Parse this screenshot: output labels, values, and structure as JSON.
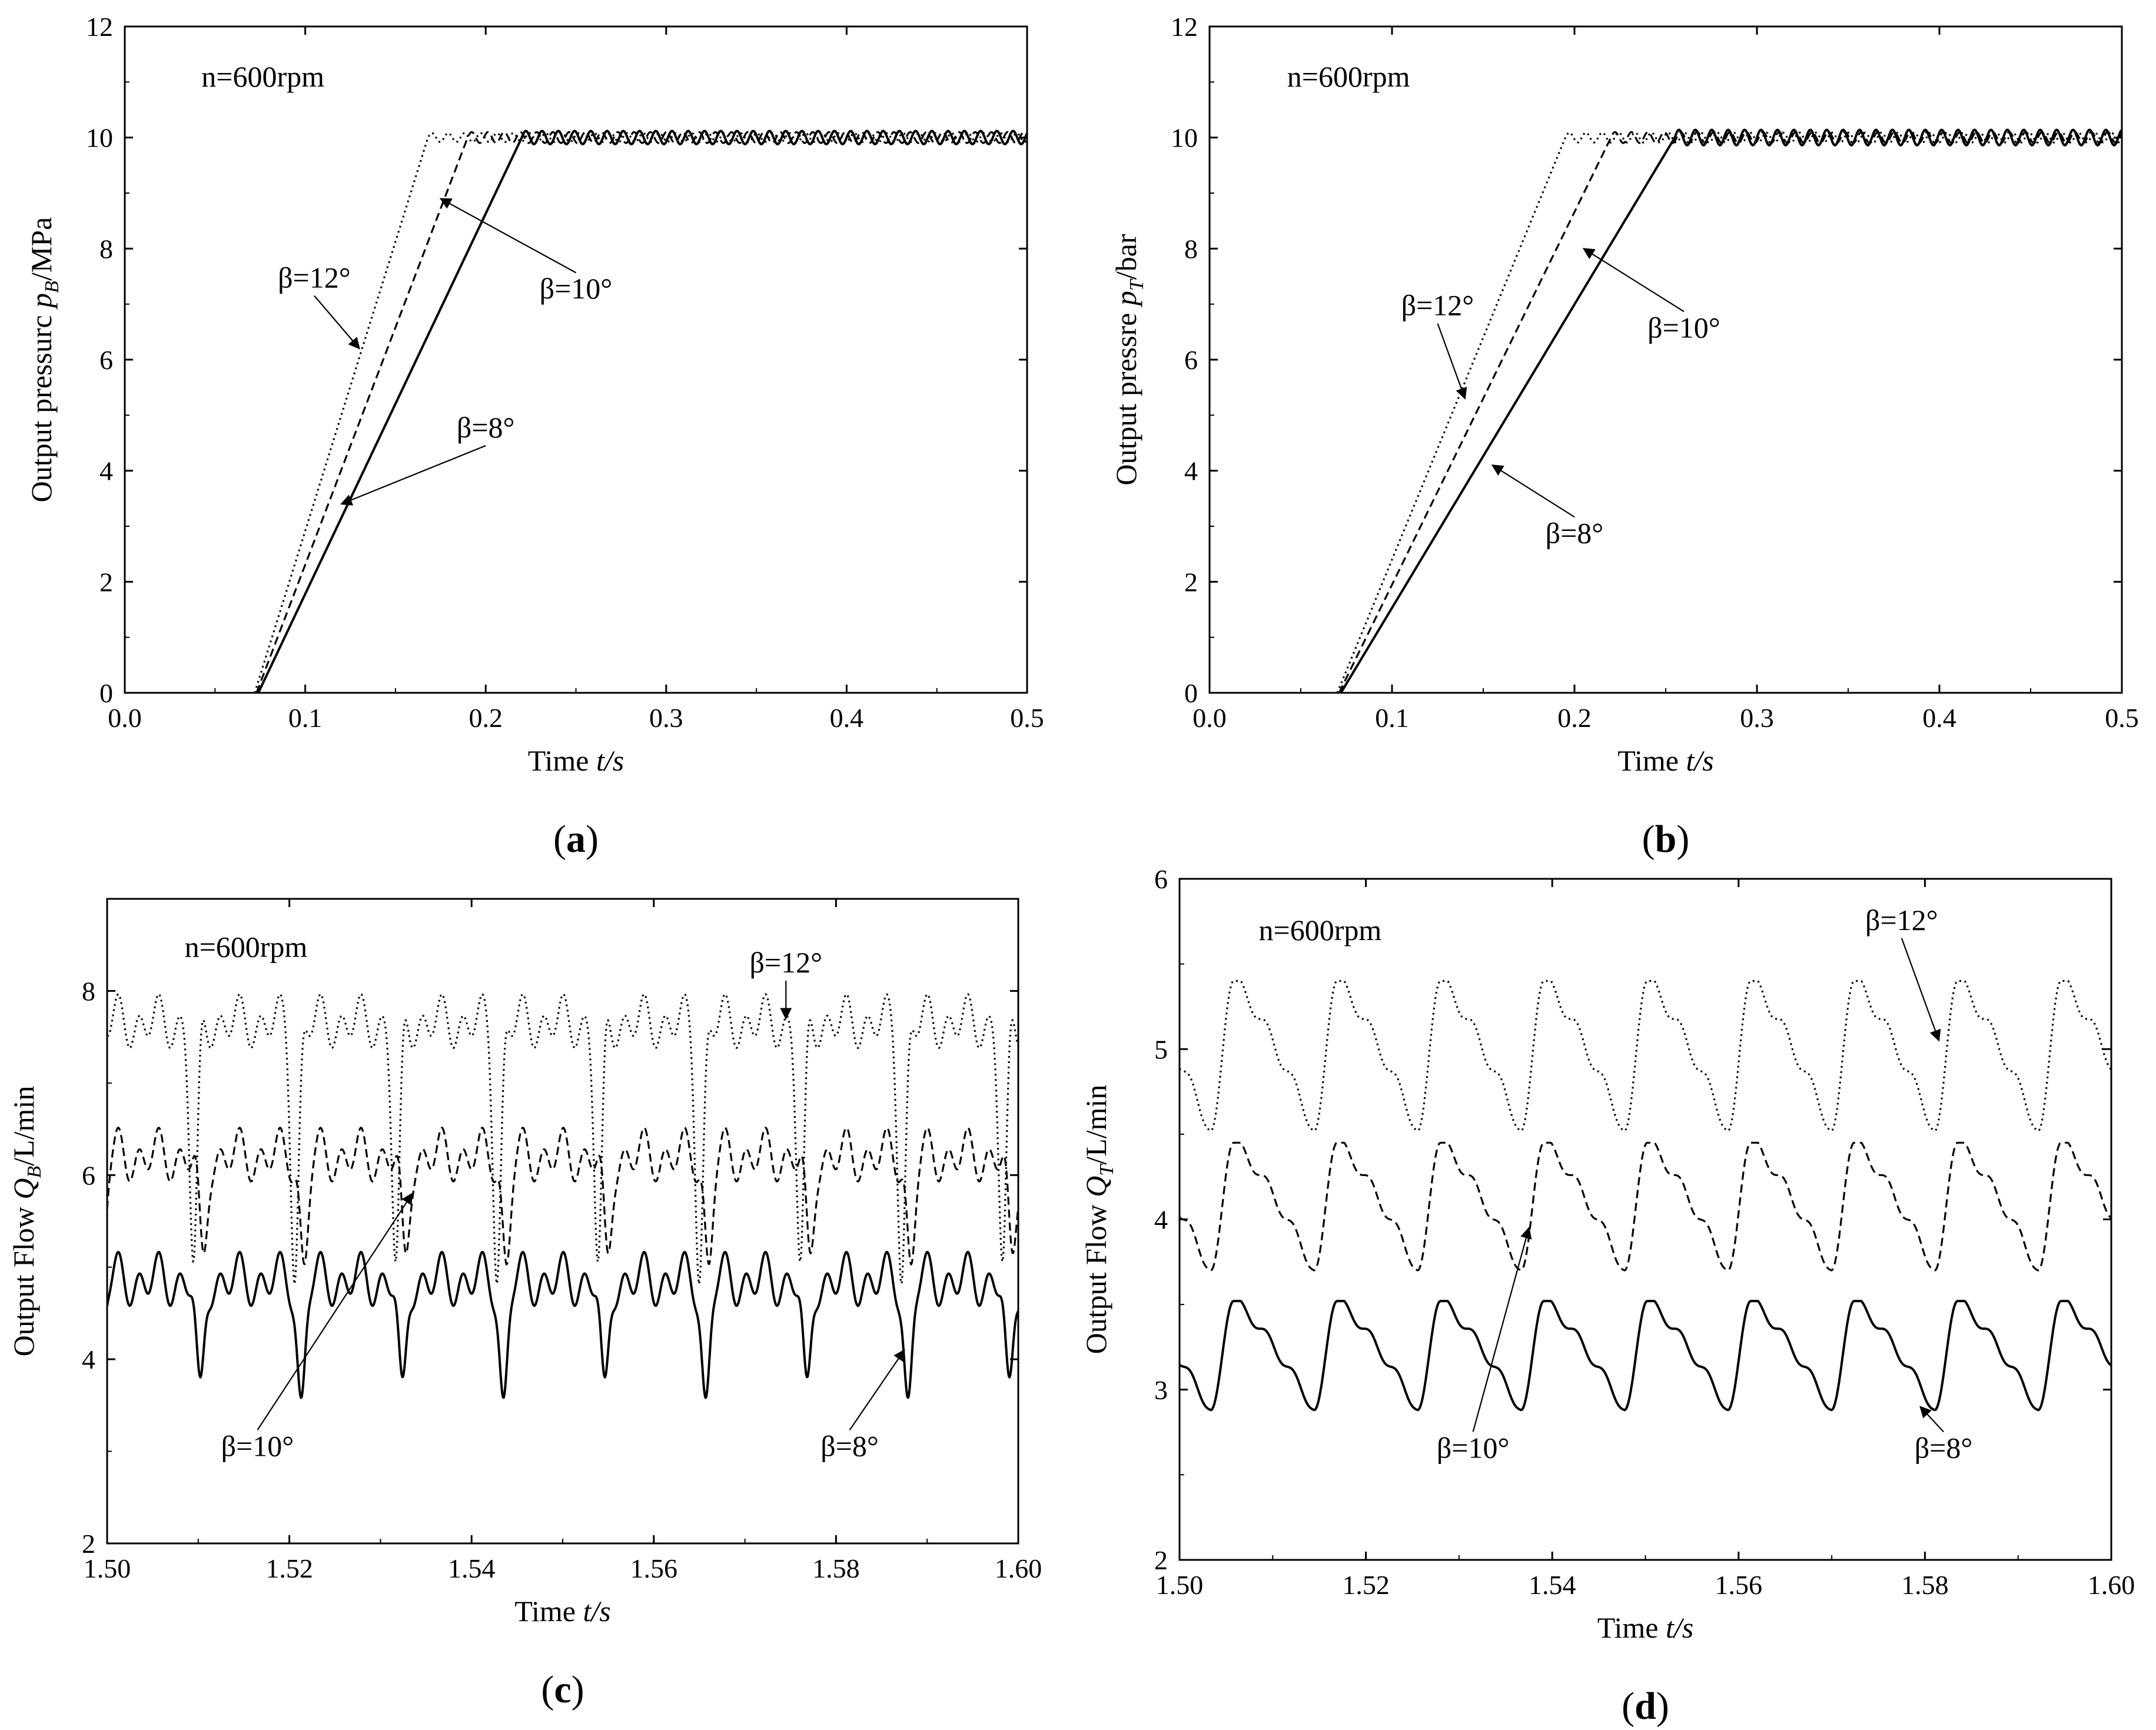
{
  "chart_data": [
    {
      "id": "a",
      "type": "line",
      "panel_label": "(a)",
      "condition": "n=600rpm",
      "xlabel_word": "Time",
      "xlabel_var": "t/s",
      "ylabel_main": "Output pressurc ",
      "ylabel_var": "p",
      "ylabel_sub": "B",
      "ylabel_unit": "/MPa",
      "xlim": [
        0,
        0.5
      ],
      "ylim": [
        0,
        12
      ],
      "xticks": [
        0.0,
        0.1,
        0.2,
        0.3,
        0.4,
        0.5
      ],
      "xtick_labels": [
        "0.0",
        "0.1",
        "0.2",
        "0.3",
        "0.4",
        "0.5"
      ],
      "yticks": [
        0,
        2,
        4,
        6,
        8,
        10,
        12
      ],
      "ytick_labels": [
        "0",
        "2",
        "4",
        "6",
        "8",
        "10",
        "12"
      ],
      "series": [
        {
          "name": "β=12°",
          "style": "dotted",
          "start": 0.072,
          "end": 0.168,
          "amplitude": 0.08,
          "period": 0.009,
          "level": 10
        },
        {
          "name": "β=10°",
          "style": "dashed",
          "start": 0.073,
          "end": 0.19,
          "amplitude": 0.1,
          "period": 0.009,
          "level": 10
        },
        {
          "name": "β=8°",
          "style": "solid",
          "start": 0.074,
          "end": 0.22,
          "amplitude": 0.12,
          "period": 0.009,
          "level": 10
        }
      ],
      "annotations": [
        {
          "text": "β=12°",
          "label_at": [
            0.105,
            7.3
          ],
          "arrow_to": [
            0.13,
            6.2
          ]
        },
        {
          "text": "β=10°",
          "label_at": [
            0.25,
            7.1
          ],
          "arrow_to": [
            0.175,
            8.9
          ]
        },
        {
          "text": "β=8°",
          "label_at": [
            0.2,
            4.6
          ],
          "arrow_to": [
            0.12,
            3.4
          ]
        }
      ]
    },
    {
      "id": "b",
      "type": "line",
      "panel_label": "(b)",
      "condition": "n=600rpm",
      "xlabel_word": "Time",
      "xlabel_var": "t/s",
      "ylabel_main": "Output pressre ",
      "ylabel_var": "p",
      "ylabel_sub": "T",
      "ylabel_unit": "/bar",
      "xlim": [
        0,
        0.5
      ],
      "ylim": [
        0,
        12
      ],
      "xticks": [
        0.0,
        0.1,
        0.2,
        0.3,
        0.4,
        0.5
      ],
      "xtick_labels": [
        "0.0",
        "0.1",
        "0.2",
        "0.3",
        "0.4",
        "0.5"
      ],
      "yticks": [
        0,
        2,
        4,
        6,
        8,
        10,
        12
      ],
      "ytick_labels": [
        "0",
        "2",
        "4",
        "6",
        "8",
        "10",
        "12"
      ],
      "series": [
        {
          "name": "β=12°",
          "style": "dotted",
          "start": 0.07,
          "end": 0.195,
          "amplitude": 0.09,
          "period": 0.009,
          "level": 10
        },
        {
          "name": "β=10°",
          "style": "dashed",
          "start": 0.071,
          "end": 0.22,
          "amplitude": 0.1,
          "period": 0.009,
          "level": 10
        },
        {
          "name": "β=8°",
          "style": "solid",
          "start": 0.072,
          "end": 0.255,
          "amplitude": 0.14,
          "period": 0.009,
          "level": 10
        }
      ],
      "annotations": [
        {
          "text": "β=12°",
          "label_at": [
            0.125,
            6.8
          ],
          "arrow_to": [
            0.14,
            5.3
          ]
        },
        {
          "text": "β=10°",
          "label_at": [
            0.26,
            6.4
          ],
          "arrow_to": [
            0.205,
            8.0
          ]
        },
        {
          "text": "β=8°",
          "label_at": [
            0.2,
            2.7
          ],
          "arrow_to": [
            0.155,
            4.1
          ]
        }
      ]
    },
    {
      "id": "c",
      "type": "line",
      "panel_label": "(c)",
      "condition": "n=600rpm",
      "xlabel_word": "Time",
      "xlabel_var": "t/s",
      "ylabel_main": "Output Flow ",
      "ylabel_var": "Q",
      "ylabel_sub": "B",
      "ylabel_unit": "/L/min",
      "xlim": [
        1.5,
        1.6
      ],
      "ylim": [
        2,
        9
      ],
      "xticks": [
        1.5,
        1.52,
        1.54,
        1.56,
        1.58,
        1.6
      ],
      "xtick_labels": [
        "1.50",
        "1.52",
        "1.54",
        "1.56",
        "1.58",
        "1.60"
      ],
      "yticks": [
        2,
        4,
        6,
        8
      ],
      "ytick_labels": [
        "2",
        "4",
        "6",
        "8"
      ],
      "series": [
        {
          "name": "β=12°",
          "style": "dotted",
          "base": 7.65,
          "ripple": 0.3,
          "dip_min": 5.0,
          "period": 0.0111,
          "dip_phase": 0.0095
        },
        {
          "name": "β=10°",
          "style": "dashed",
          "base": 6.2,
          "ripple": 0.3,
          "dip_min": 5.0,
          "period": 0.0111,
          "dip_phase": 0.0105
        },
        {
          "name": "β=8°",
          "style": "solid",
          "base": 4.85,
          "ripple": 0.3,
          "dip_min": 3.5,
          "period": 0.0111,
          "dip_phase": 0.0102
        }
      ],
      "annotations": [
        {
          "text": "β=12°",
          "label_at": [
            1.5745,
            8.2
          ],
          "arrow_to": [
            1.5745,
            7.7
          ]
        },
        {
          "text": "β=10°",
          "label_at": [
            1.5165,
            2.95
          ],
          "arrow_to": [
            1.5335,
            5.8
          ]
        },
        {
          "text": "β=8°",
          "label_at": [
            1.5815,
            2.95
          ],
          "arrow_to": [
            1.5875,
            4.1
          ]
        }
      ]
    },
    {
      "id": "d",
      "type": "line",
      "panel_label": "(d)",
      "condition": "n=600rpm",
      "xlabel_word": "Time",
      "xlabel_var": "t/s",
      "ylabel_main": "Output Flow ",
      "ylabel_var": "Q",
      "ylabel_sub": "T",
      "ylabel_unit": "/L/min",
      "xlim": [
        1.5,
        1.6
      ],
      "ylim": [
        2,
        6
      ],
      "xticks": [
        1.5,
        1.52,
        1.54,
        1.56,
        1.58,
        1.6
      ],
      "xtick_labels": [
        "1.50",
        "1.52",
        "1.54",
        "1.56",
        "1.58",
        "1.60"
      ],
      "yticks": [
        2,
        3,
        4,
        5,
        6
      ],
      "ytick_labels": [
        "2",
        "3",
        "4",
        "5",
        "6"
      ],
      "series": [
        {
          "name": "β=12°",
          "style": "dotted",
          "min": 4.52,
          "max": 5.4,
          "period": 0.0111,
          "peak_phase": 0.0058
        },
        {
          "name": "β=10°",
          "style": "dashed",
          "min": 3.7,
          "max": 4.45,
          "period": 0.0111,
          "peak_phase": 0.0058
        },
        {
          "name": "β=8°",
          "style": "solid",
          "min": 2.88,
          "max": 3.52,
          "period": 0.0111,
          "peak_phase": 0.0058
        }
      ],
      "annotations": [
        {
          "text": "β=12°",
          "label_at": [
            1.5775,
            5.7
          ],
          "arrow_to": [
            1.5815,
            5.05
          ]
        },
        {
          "text": "β=10°",
          "label_at": [
            1.5315,
            2.6
          ],
          "arrow_to": [
            1.5375,
            3.95
          ]
        },
        {
          "text": "β=8°",
          "label_at": [
            1.582,
            2.6
          ],
          "arrow_to": [
            1.5795,
            2.9
          ]
        }
      ]
    }
  ]
}
